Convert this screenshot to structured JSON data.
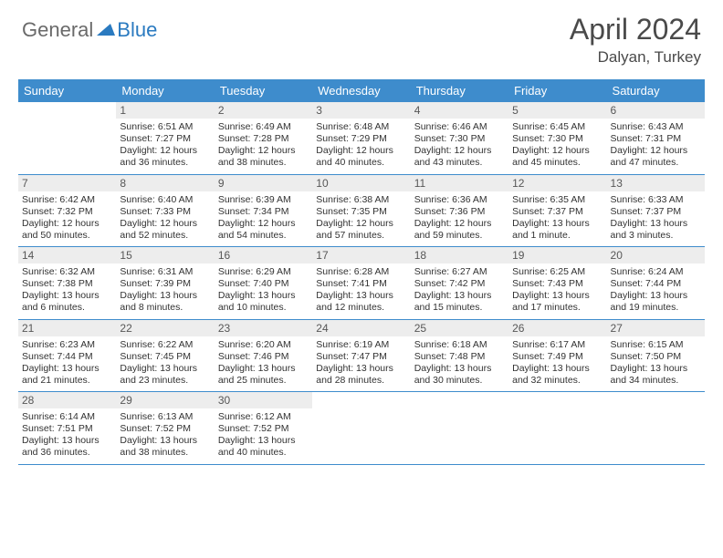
{
  "logo": {
    "part1": "General",
    "part2": "Blue"
  },
  "title": "April 2024",
  "location": "Dalyan, Turkey",
  "colors": {
    "header_bg": "#3e8ccc",
    "header_text": "#ffffff",
    "daynum_bg": "#ededed",
    "daynum_text": "#575757",
    "info_text": "#323232",
    "logo_gray": "#6a6a6a",
    "logo_blue": "#2a7ac0",
    "divider": "#3e8ccc"
  },
  "day_names": [
    "Sunday",
    "Monday",
    "Tuesday",
    "Wednesday",
    "Thursday",
    "Friday",
    "Saturday"
  ],
  "weeks": [
    [
      {
        "n": "",
        "sr": "",
        "ss": "",
        "dl": ""
      },
      {
        "n": "1",
        "sr": "Sunrise: 6:51 AM",
        "ss": "Sunset: 7:27 PM",
        "dl": "Daylight: 12 hours and 36 minutes."
      },
      {
        "n": "2",
        "sr": "Sunrise: 6:49 AM",
        "ss": "Sunset: 7:28 PM",
        "dl": "Daylight: 12 hours and 38 minutes."
      },
      {
        "n": "3",
        "sr": "Sunrise: 6:48 AM",
        "ss": "Sunset: 7:29 PM",
        "dl": "Daylight: 12 hours and 40 minutes."
      },
      {
        "n": "4",
        "sr": "Sunrise: 6:46 AM",
        "ss": "Sunset: 7:30 PM",
        "dl": "Daylight: 12 hours and 43 minutes."
      },
      {
        "n": "5",
        "sr": "Sunrise: 6:45 AM",
        "ss": "Sunset: 7:30 PM",
        "dl": "Daylight: 12 hours and 45 minutes."
      },
      {
        "n": "6",
        "sr": "Sunrise: 6:43 AM",
        "ss": "Sunset: 7:31 PM",
        "dl": "Daylight: 12 hours and 47 minutes."
      }
    ],
    [
      {
        "n": "7",
        "sr": "Sunrise: 6:42 AM",
        "ss": "Sunset: 7:32 PM",
        "dl": "Daylight: 12 hours and 50 minutes."
      },
      {
        "n": "8",
        "sr": "Sunrise: 6:40 AM",
        "ss": "Sunset: 7:33 PM",
        "dl": "Daylight: 12 hours and 52 minutes."
      },
      {
        "n": "9",
        "sr": "Sunrise: 6:39 AM",
        "ss": "Sunset: 7:34 PM",
        "dl": "Daylight: 12 hours and 54 minutes."
      },
      {
        "n": "10",
        "sr": "Sunrise: 6:38 AM",
        "ss": "Sunset: 7:35 PM",
        "dl": "Daylight: 12 hours and 57 minutes."
      },
      {
        "n": "11",
        "sr": "Sunrise: 6:36 AM",
        "ss": "Sunset: 7:36 PM",
        "dl": "Daylight: 12 hours and 59 minutes."
      },
      {
        "n": "12",
        "sr": "Sunrise: 6:35 AM",
        "ss": "Sunset: 7:37 PM",
        "dl": "Daylight: 13 hours and 1 minute."
      },
      {
        "n": "13",
        "sr": "Sunrise: 6:33 AM",
        "ss": "Sunset: 7:37 PM",
        "dl": "Daylight: 13 hours and 3 minutes."
      }
    ],
    [
      {
        "n": "14",
        "sr": "Sunrise: 6:32 AM",
        "ss": "Sunset: 7:38 PM",
        "dl": "Daylight: 13 hours and 6 minutes."
      },
      {
        "n": "15",
        "sr": "Sunrise: 6:31 AM",
        "ss": "Sunset: 7:39 PM",
        "dl": "Daylight: 13 hours and 8 minutes."
      },
      {
        "n": "16",
        "sr": "Sunrise: 6:29 AM",
        "ss": "Sunset: 7:40 PM",
        "dl": "Daylight: 13 hours and 10 minutes."
      },
      {
        "n": "17",
        "sr": "Sunrise: 6:28 AM",
        "ss": "Sunset: 7:41 PM",
        "dl": "Daylight: 13 hours and 12 minutes."
      },
      {
        "n": "18",
        "sr": "Sunrise: 6:27 AM",
        "ss": "Sunset: 7:42 PM",
        "dl": "Daylight: 13 hours and 15 minutes."
      },
      {
        "n": "19",
        "sr": "Sunrise: 6:25 AM",
        "ss": "Sunset: 7:43 PM",
        "dl": "Daylight: 13 hours and 17 minutes."
      },
      {
        "n": "20",
        "sr": "Sunrise: 6:24 AM",
        "ss": "Sunset: 7:44 PM",
        "dl": "Daylight: 13 hours and 19 minutes."
      }
    ],
    [
      {
        "n": "21",
        "sr": "Sunrise: 6:23 AM",
        "ss": "Sunset: 7:44 PM",
        "dl": "Daylight: 13 hours and 21 minutes."
      },
      {
        "n": "22",
        "sr": "Sunrise: 6:22 AM",
        "ss": "Sunset: 7:45 PM",
        "dl": "Daylight: 13 hours and 23 minutes."
      },
      {
        "n": "23",
        "sr": "Sunrise: 6:20 AM",
        "ss": "Sunset: 7:46 PM",
        "dl": "Daylight: 13 hours and 25 minutes."
      },
      {
        "n": "24",
        "sr": "Sunrise: 6:19 AM",
        "ss": "Sunset: 7:47 PM",
        "dl": "Daylight: 13 hours and 28 minutes."
      },
      {
        "n": "25",
        "sr": "Sunrise: 6:18 AM",
        "ss": "Sunset: 7:48 PM",
        "dl": "Daylight: 13 hours and 30 minutes."
      },
      {
        "n": "26",
        "sr": "Sunrise: 6:17 AM",
        "ss": "Sunset: 7:49 PM",
        "dl": "Daylight: 13 hours and 32 minutes."
      },
      {
        "n": "27",
        "sr": "Sunrise: 6:15 AM",
        "ss": "Sunset: 7:50 PM",
        "dl": "Daylight: 13 hours and 34 minutes."
      }
    ],
    [
      {
        "n": "28",
        "sr": "Sunrise: 6:14 AM",
        "ss": "Sunset: 7:51 PM",
        "dl": "Daylight: 13 hours and 36 minutes."
      },
      {
        "n": "29",
        "sr": "Sunrise: 6:13 AM",
        "ss": "Sunset: 7:52 PM",
        "dl": "Daylight: 13 hours and 38 minutes."
      },
      {
        "n": "30",
        "sr": "Sunrise: 6:12 AM",
        "ss": "Sunset: 7:52 PM",
        "dl": "Daylight: 13 hours and 40 minutes."
      },
      {
        "n": "",
        "sr": "",
        "ss": "",
        "dl": ""
      },
      {
        "n": "",
        "sr": "",
        "ss": "",
        "dl": ""
      },
      {
        "n": "",
        "sr": "",
        "ss": "",
        "dl": ""
      },
      {
        "n": "",
        "sr": "",
        "ss": "",
        "dl": ""
      }
    ]
  ]
}
